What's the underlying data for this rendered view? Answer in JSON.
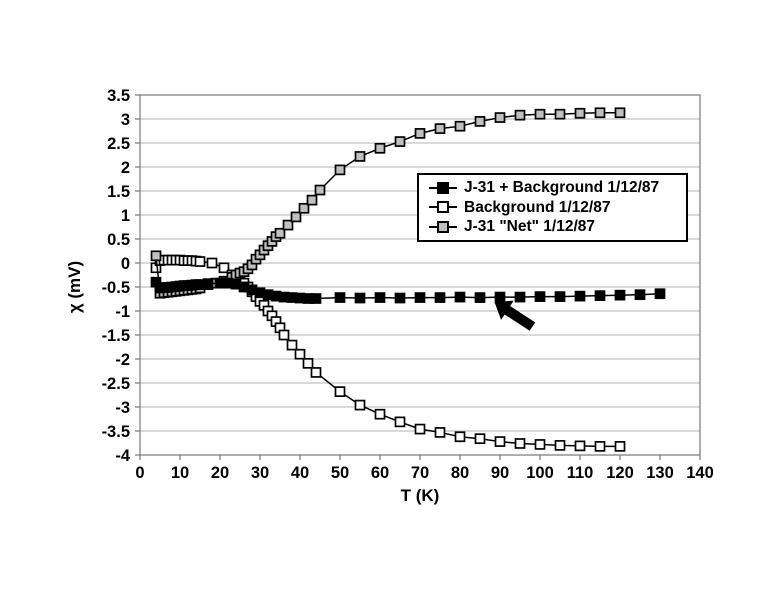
{
  "figure": {
    "background": "#ffffff",
    "x_axis_title": "T (K)",
    "y_axis_title": "χ (mV)"
  },
  "chart_data": {
    "type": "line",
    "title": "",
    "xlabel": "T (K)",
    "ylabel": "χ (mV)",
    "xlim": [
      0,
      140
    ],
    "ylim": [
      -4,
      3.5
    ],
    "x_tick_step": 10,
    "y_tick_step": 0.5,
    "grid": "horizontal",
    "legend_position": "upper-right-inside",
    "colors": {
      "line": "#000000",
      "grid": "#b3b3b3",
      "axis": "#808080",
      "filled_marker": "#000000",
      "open_marker": "#ffffff",
      "gray_marker": "#c0c0c0"
    },
    "series": [
      {
        "name": "J-31 + Background 1/12/87",
        "marker": "filled-square",
        "fill": "#000000",
        "x": [
          4,
          5,
          6,
          7,
          8,
          9,
          10,
          11,
          12,
          13,
          14,
          15,
          17,
          20,
          22,
          24,
          26,
          28,
          30,
          32,
          34,
          36,
          38,
          40,
          42,
          44,
          50,
          55,
          60,
          65,
          70,
          75,
          80,
          85,
          90,
          95,
          100,
          105,
          110,
          115,
          120,
          125,
          130
        ],
        "y": [
          -0.4,
          -0.52,
          -0.51,
          -0.51,
          -0.5,
          -0.49,
          -0.48,
          -0.47,
          -0.47,
          -0.46,
          -0.45,
          -0.45,
          -0.43,
          -0.42,
          -0.42,
          -0.44,
          -0.5,
          -0.56,
          -0.62,
          -0.66,
          -0.69,
          -0.71,
          -0.72,
          -0.73,
          -0.74,
          -0.74,
          -0.72,
          -0.73,
          -0.72,
          -0.73,
          -0.72,
          -0.72,
          -0.71,
          -0.72,
          -0.71,
          -0.71,
          -0.7,
          -0.7,
          -0.69,
          -0.68,
          -0.67,
          -0.66,
          -0.64
        ]
      },
      {
        "name": "Background 1/12/87",
        "marker": "open-square",
        "fill": "#ffffff",
        "x": [
          4,
          5,
          6,
          7,
          8,
          9,
          10,
          11,
          12,
          13,
          14,
          15,
          18,
          21,
          23,
          25,
          26,
          27,
          28,
          29,
          30,
          31,
          32,
          33,
          34,
          35,
          36,
          38,
          40,
          42,
          44,
          50,
          55,
          60,
          65,
          70,
          75,
          80,
          85,
          90,
          95,
          100,
          105,
          110,
          115,
          120
        ],
        "y": [
          -0.1,
          0.05,
          0.06,
          0.06,
          0.06,
          0.06,
          0.06,
          0.05,
          0.05,
          0.05,
          0.04,
          0.03,
          0.0,
          -0.1,
          -0.25,
          -0.35,
          -0.42,
          -0.5,
          -0.6,
          -0.7,
          -0.8,
          -0.88,
          -1.0,
          -1.1,
          -1.22,
          -1.35,
          -1.5,
          -1.71,
          -1.9,
          -2.09,
          -2.28,
          -2.68,
          -2.96,
          -3.15,
          -3.31,
          -3.46,
          -3.53,
          -3.62,
          -3.66,
          -3.72,
          -3.76,
          -3.78,
          -3.8,
          -3.81,
          -3.82,
          -3.82
        ]
      },
      {
        "name": "J-31 \"Net\" 1/12/87",
        "marker": "gray-square",
        "fill": "#c0c0c0",
        "x": [
          4,
          5,
          6,
          7,
          8,
          9,
          10,
          11,
          12,
          13,
          14,
          15,
          17,
          19,
          21,
          23,
          24,
          25,
          26,
          27,
          28,
          29,
          30,
          31,
          32,
          33,
          34,
          35,
          37,
          39,
          41,
          43,
          45,
          50,
          55,
          60,
          65,
          70,
          75,
          80,
          85,
          90,
          95,
          100,
          105,
          110,
          115,
          120
        ],
        "y": [
          0.15,
          -0.63,
          -0.62,
          -0.61,
          -0.6,
          -0.59,
          -0.58,
          -0.57,
          -0.56,
          -0.55,
          -0.54,
          -0.52,
          -0.45,
          -0.42,
          -0.38,
          -0.3,
          -0.25,
          -0.21,
          -0.18,
          -0.12,
          -0.04,
          0.08,
          0.17,
          0.27,
          0.36,
          0.45,
          0.55,
          0.62,
          0.79,
          0.96,
          1.14,
          1.31,
          1.52,
          1.94,
          2.22,
          2.39,
          2.53,
          2.7,
          2.8,
          2.85,
          2.95,
          3.03,
          3.08,
          3.1,
          3.1,
          3.12,
          3.13,
          3.13
        ]
      }
    ],
    "draw_order": [
      1,
      2,
      0
    ],
    "annotation": {
      "type": "arrow",
      "points_at": "J-31 + Background curve",
      "tip": {
        "t": 88.8,
        "chi": -0.82
      },
      "tail": {
        "t": 98.0,
        "chi": -1.32
      }
    }
  }
}
